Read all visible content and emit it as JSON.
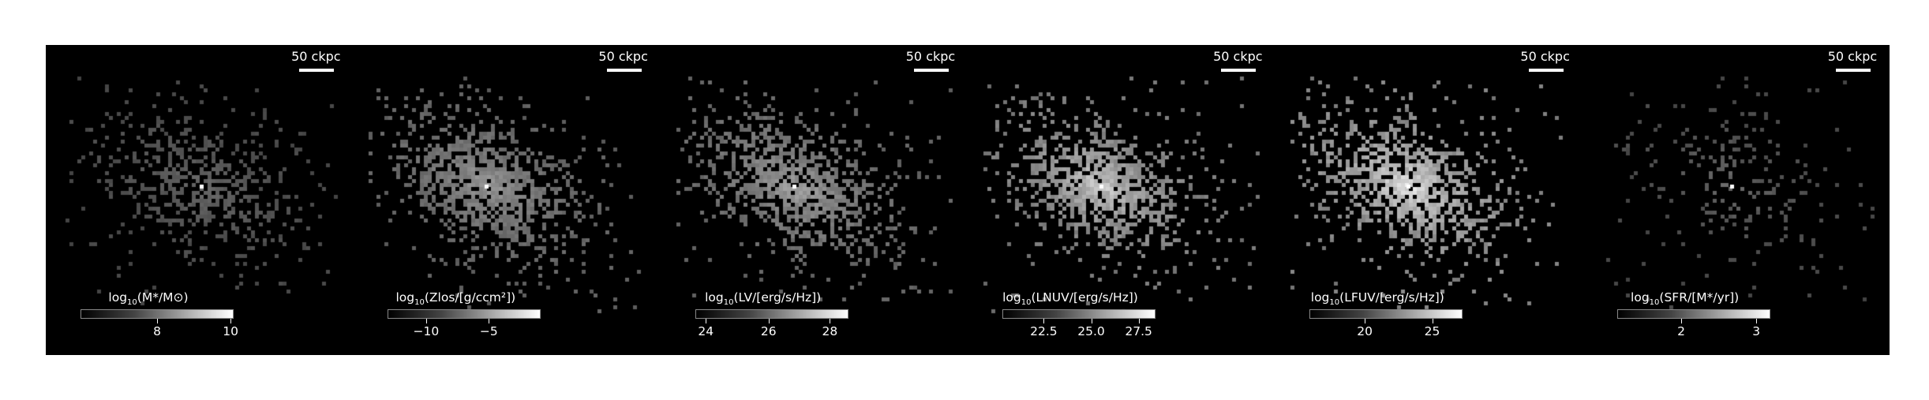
{
  "figure": {
    "panels": [
      {
        "id": "stellar-mass",
        "scale_label": "50 ckpc",
        "colorbar": {
          "prefix": "log",
          "base": "10",
          "text": "(M*/M⊙)",
          "ticks": [
            "8",
            "10"
          ],
          "tick_fracs": [
            0.5,
            0.98
          ]
        },
        "map": {
          "density": 0.55,
          "brightness": 0.35,
          "peak_x": 0.5,
          "peak_y": 0.45
        }
      },
      {
        "id": "metallicity",
        "scale_label": "50 ckpc",
        "colorbar": {
          "prefix": "log",
          "base": "10",
          "text": "(Zlos/[g/ccm²])",
          "ticks": [
            "−10",
            "−5"
          ],
          "tick_fracs": [
            0.25,
            0.66
          ]
        },
        "map": {
          "density": 0.9,
          "brightness": 0.6,
          "peak_x": 0.43,
          "peak_y": 0.45
        }
      },
      {
        "id": "v-band",
        "scale_label": "50 ckpc",
        "colorbar": {
          "prefix": "log",
          "base": "10",
          "text": "(LV/[erg/s/Hz])",
          "ticks": [
            "24",
            "26",
            "28"
          ],
          "tick_fracs": [
            0.07,
            0.48,
            0.88
          ]
        },
        "map": {
          "density": 0.85,
          "brightness": 0.65,
          "peak_x": 0.43,
          "peak_y": 0.45
        }
      },
      {
        "id": "nuv",
        "scale_label": "50 ckpc",
        "colorbar": {
          "prefix": "log",
          "base": "10",
          "text": "(LNUV/[erg/s/Hz])",
          "ticks": [
            "22.5",
            "25.0",
            "27.5"
          ],
          "tick_fracs": [
            0.27,
            0.58,
            0.89
          ]
        },
        "map": {
          "density": 0.85,
          "brightness": 0.85,
          "peak_x": 0.43,
          "peak_y": 0.45
        }
      },
      {
        "id": "fuv",
        "scale_label": "50 ckpc",
        "colorbar": {
          "prefix": "log",
          "base": "10",
          "text": "(LFUV/[erg/s/Hz])",
          "ticks": [
            "20",
            "25"
          ],
          "tick_fracs": [
            0.36,
            0.8
          ]
        },
        "map": {
          "density": 0.85,
          "brightness": 0.97,
          "peak_x": 0.43,
          "peak_y": 0.45
        }
      },
      {
        "id": "sfr",
        "scale_label": "50 ckpc",
        "colorbar": {
          "prefix": "log",
          "base": "10",
          "text": "(SFR/[M*/yr])",
          "ticks": [
            "2",
            "3"
          ],
          "tick_fracs": [
            0.42,
            0.91
          ]
        },
        "map": {
          "density": 0.18,
          "brightness": 0.35,
          "peak_x": 0.48,
          "peak_y": 0.45
        }
      }
    ]
  }
}
